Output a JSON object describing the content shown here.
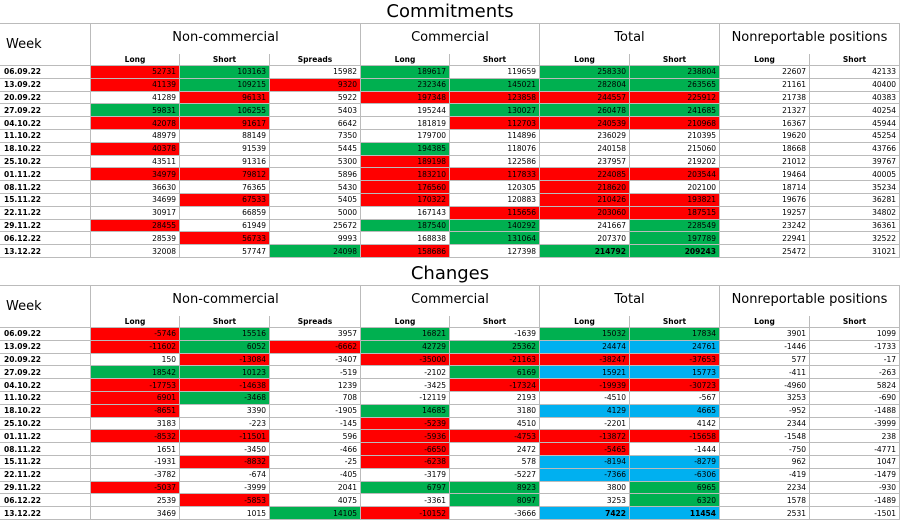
{
  "commitments": {
    "title": "Commitments",
    "week_label": "Week",
    "groups": [
      "Non-commercial",
      "Commercial",
      "Total",
      "Nonreportable positions"
    ],
    "subheaders": [
      "Long",
      "Short",
      "Spreads",
      "Long",
      "Short",
      "Long",
      "Short",
      "Long",
      "Short"
    ],
    "rows": [
      {
        "week": "06.09.22",
        "values": [
          {
            "value": 52731,
            "color": "#ff0000"
          },
          {
            "value": 103163,
            "color": "#00b050"
          },
          15982,
          {
            "value": 189617,
            "color": "#00b050"
          },
          119659,
          {
            "value": 258330,
            "color": "#00b050"
          },
          {
            "value": 238804,
            "color": "#00b050"
          },
          22607,
          42133
        ]
      },
      {
        "week": "13.09.22",
        "values": [
          {
            "value": 41139,
            "color": "#ff0000"
          },
          {
            "value": 109215,
            "color": "#00b050"
          },
          {
            "value": 9320,
            "color": "#ff0000"
          },
          {
            "value": 232346,
            "color": "#00b050"
          },
          {
            "value": 145021,
            "color": "#00b050"
          },
          {
            "value": 282804,
            "color": "#00b050"
          },
          {
            "value": 263565,
            "color": "#00b050"
          },
          21161,
          40400
        ]
      },
      {
        "week": "20.09.22",
        "values": [
          41289,
          {
            "value": 96131,
            "color": "#ff0000"
          },
          5922,
          {
            "value": 197348,
            "color": "#ff0000"
          },
          {
            "value": 123858,
            "color": "#ff0000"
          },
          {
            "value": 244557,
            "color": "#ff0000"
          },
          {
            "value": 225912,
            "color": "#ff0000"
          },
          21738,
          40383
        ]
      },
      {
        "week": "27.09.22",
        "values": [
          {
            "value": 59831,
            "color": "#00b050"
          },
          {
            "value": 106255,
            "color": "#00b050"
          },
          5403,
          195244,
          {
            "value": 130027,
            "color": "#00b050"
          },
          {
            "value": 260478,
            "color": "#00b050"
          },
          {
            "value": 241685,
            "color": "#00b050"
          },
          21327,
          40254
        ]
      },
      {
        "week": "04.10.22",
        "values": [
          {
            "value": 42078,
            "color": "#ff0000"
          },
          {
            "value": 91617,
            "color": "#ff0000"
          },
          6642,
          181819,
          {
            "value": 112703,
            "color": "#ff0000"
          },
          {
            "value": 240539,
            "color": "#ff0000"
          },
          {
            "value": 210968,
            "color": "#ff0000"
          },
          16367,
          45944
        ]
      },
      {
        "week": "11.10.22",
        "values": [
          48979,
          88149,
          7350,
          179700,
          114896,
          236029,
          210395,
          19620,
          45254
        ]
      },
      {
        "week": "18.10.22",
        "values": [
          {
            "value": 40378,
            "color": "#ff0000"
          },
          91539,
          5445,
          {
            "value": 194385,
            "color": "#00b050"
          },
          118076,
          240158,
          215060,
          18668,
          43766
        ]
      },
      {
        "week": "25.10.22",
        "values": [
          43511,
          91316,
          5300,
          {
            "value": 189198,
            "color": "#ff0000"
          },
          122586,
          237957,
          219202,
          21012,
          39767
        ]
      },
      {
        "week": "01.11.22",
        "values": [
          {
            "value": 34979,
            "color": "#ff0000"
          },
          {
            "value": 79812,
            "color": "#ff0000"
          },
          5896,
          {
            "value": 183210,
            "color": "#ff0000"
          },
          {
            "value": 117833,
            "color": "#ff0000"
          },
          {
            "value": 224085,
            "color": "#ff0000"
          },
          {
            "value": 203544,
            "color": "#ff0000"
          },
          19464,
          40005
        ]
      },
      {
        "week": "08.11.22",
        "values": [
          36630,
          76365,
          5430,
          {
            "value": 176560,
            "color": "#ff0000"
          },
          120305,
          {
            "value": 218620,
            "color": "#ff0000"
          },
          202100,
          18714,
          35234
        ]
      },
      {
        "week": "15.11.22",
        "values": [
          34699,
          {
            "value": 67533,
            "color": "#ff0000"
          },
          5405,
          {
            "value": 170322,
            "color": "#ff0000"
          },
          120883,
          {
            "value": 210426,
            "color": "#ff0000"
          },
          {
            "value": 193821,
            "color": "#ff0000"
          },
          19676,
          36281
        ]
      },
      {
        "week": "22.11.22",
        "values": [
          30917,
          66859,
          5000,
          167143,
          {
            "value": 115656,
            "color": "#ff0000"
          },
          {
            "value": 203060,
            "color": "#ff0000"
          },
          {
            "value": 187515,
            "color": "#ff0000"
          },
          19257,
          34802
        ]
      },
      {
        "week": "29.11.22",
        "values": [
          {
            "value": 28455,
            "color": "#ff0000"
          },
          61949,
          25672,
          {
            "value": 187540,
            "color": "#00b050"
          },
          {
            "value": 140292,
            "color": "#00b050"
          },
          241667,
          {
            "value": 228549,
            "color": "#00b050"
          },
          23242,
          36361
        ]
      },
      {
        "week": "06.12.22",
        "values": [
          28539,
          {
            "value": 56733,
            "color": "#ff0000"
          },
          9993,
          168838,
          {
            "value": 131064,
            "color": "#00b050"
          },
          207370,
          {
            "value": 197789,
            "color": "#00b050"
          },
          22941,
          32522
        ]
      },
      {
        "week": "13.12.22",
        "values": [
          32008,
          57747,
          {
            "value": 24098,
            "color": "#00b050"
          },
          {
            "value": 158686,
            "color": "#ff0000"
          },
          127398,
          {
            "value": 214792,
            "color": "#00b050",
            "bold": true
          },
          {
            "value": 209243,
            "color": "#00b050",
            "bold": true
          },
          25472,
          31021
        ]
      }
    ]
  },
  "changes": {
    "title": "Changes",
    "week_label": "Week",
    "groups": [
      "Non-commercial",
      "Commercial",
      "Total",
      "Nonreportable positions"
    ],
    "subheaders": [
      "Long",
      "Short",
      "Spreads",
      "Long",
      "Short",
      "Long",
      "Short",
      "Long",
      "Short"
    ],
    "rows": [
      {
        "week": "06.09.22",
        "values": [
          {
            "value": -5746,
            "color": "#ff0000"
          },
          {
            "value": 15516,
            "color": "#00b050"
          },
          3957,
          {
            "value": 16821,
            "color": "#00b050"
          },
          -1639,
          {
            "value": 15032,
            "color": "#00b050"
          },
          {
            "value": 17834,
            "color": "#00b050"
          },
          3901,
          1099
        ]
      },
      {
        "week": "13.09.22",
        "values": [
          {
            "value": -11602,
            "color": "#ff0000"
          },
          {
            "value": 6052,
            "color": "#00b050"
          },
          {
            "value": -6662,
            "color": "#ff0000"
          },
          {
            "value": 42729,
            "color": "#00b050"
          },
          {
            "value": 25362,
            "color": "#00b050"
          },
          {
            "value": 24474,
            "color": "#00b0f0"
          },
          {
            "value": 24761,
            "color": "#00b0f0"
          },
          -1446,
          -1733
        ]
      },
      {
        "week": "20.09.22",
        "values": [
          150,
          {
            "value": -13084,
            "color": "#ff0000"
          },
          -3407,
          {
            "value": -35000,
            "color": "#ff0000"
          },
          {
            "value": -21163,
            "color": "#ff0000"
          },
          {
            "value": -38247,
            "color": "#ff0000"
          },
          {
            "value": -37653,
            "color": "#ff0000"
          },
          577,
          -17
        ]
      },
      {
        "week": "27.09.22",
        "values": [
          {
            "value": 18542,
            "color": "#00b050"
          },
          {
            "value": 10123,
            "color": "#00b050"
          },
          -519,
          -2102,
          {
            "value": 6169,
            "color": "#00b050"
          },
          {
            "value": 15921,
            "color": "#00b0f0"
          },
          {
            "value": 15773,
            "color": "#00b0f0"
          },
          -411,
          -263
        ]
      },
      {
        "week": "04.10.22",
        "values": [
          {
            "value": -17753,
            "color": "#ff0000"
          },
          {
            "value": -14638,
            "color": "#ff0000"
          },
          1239,
          -3425,
          {
            "value": -17324,
            "color": "#ff0000"
          },
          {
            "value": -19939,
            "color": "#ff0000"
          },
          {
            "value": -30723,
            "color": "#ff0000"
          },
          -4960,
          5824
        ]
      },
      {
        "week": "11.10.22",
        "values": [
          {
            "value": 6901,
            "color": "#ff0000"
          },
          {
            "value": -3468,
            "color": "#00b050"
          },
          708,
          -12119,
          2193,
          -4510,
          -567,
          3253,
          -690
        ]
      },
      {
        "week": "18.10.22",
        "values": [
          {
            "value": -8651,
            "color": "#ff0000"
          },
          3390,
          -1905,
          {
            "value": 14685,
            "color": "#00b050"
          },
          3180,
          {
            "value": 4129,
            "color": "#00b0f0"
          },
          {
            "value": 4665,
            "color": "#00b0f0"
          },
          -952,
          -1488
        ]
      },
      {
        "week": "25.10.22",
        "values": [
          3183,
          -223,
          -145,
          {
            "value": -5239,
            "color": "#ff0000"
          },
          4510,
          -2201,
          4142,
          2344,
          -3999
        ]
      },
      {
        "week": "01.11.22",
        "values": [
          {
            "value": -8532,
            "color": "#ff0000"
          },
          {
            "value": -11501,
            "color": "#ff0000"
          },
          596,
          {
            "value": -5936,
            "color": "#ff0000"
          },
          {
            "value": -4753,
            "color": "#ff0000"
          },
          {
            "value": -13872,
            "color": "#ff0000"
          },
          {
            "value": -15658,
            "color": "#ff0000"
          },
          -1548,
          238
        ]
      },
      {
        "week": "08.11.22",
        "values": [
          1651,
          -3450,
          -466,
          {
            "value": -6650,
            "color": "#ff0000"
          },
          2472,
          {
            "value": -5465,
            "color": "#ff0000"
          },
          -1444,
          -750,
          -4771
        ]
      },
      {
        "week": "15.11.22",
        "values": [
          -1931,
          {
            "value": -8832,
            "color": "#ff0000"
          },
          -25,
          {
            "value": -6238,
            "color": "#ff0000"
          },
          578,
          {
            "value": -8194,
            "color": "#00b0f0"
          },
          {
            "value": -8279,
            "color": "#00b0f0"
          },
          962,
          1047
        ]
      },
      {
        "week": "22.11.22",
        "values": [
          -3782,
          -674,
          -405,
          -3179,
          -5227,
          {
            "value": -7366,
            "color": "#00b0f0"
          },
          {
            "value": -6306,
            "color": "#00b0f0"
          },
          -419,
          -1479
        ]
      },
      {
        "week": "29.11.22",
        "values": [
          {
            "value": -5037,
            "color": "#ff0000"
          },
          -3999,
          2041,
          {
            "value": 6797,
            "color": "#00b050"
          },
          {
            "value": 8923,
            "color": "#00b050"
          },
          3800,
          {
            "value": 6965,
            "color": "#00b050"
          },
          2234,
          -930
        ]
      },
      {
        "week": "06.12.22",
        "values": [
          2539,
          {
            "value": -5853,
            "color": "#ff0000"
          },
          4075,
          -3361,
          {
            "value": 8097,
            "color": "#00b050"
          },
          3253,
          {
            "value": 6320,
            "color": "#00b050"
          },
          1578,
          -1489
        ]
      },
      {
        "week": "13.12.22",
        "values": [
          3469,
          1015,
          {
            "value": 14105,
            "color": "#00b050"
          },
          {
            "value": -10152,
            "color": "#ff0000"
          },
          -3666,
          {
            "value": 7422,
            "color": "#00b0f0",
            "bold": true
          },
          {
            "value": 11454,
            "color": "#00b0f0",
            "bold": true
          },
          2531,
          -1501
        ]
      }
    ]
  }
}
